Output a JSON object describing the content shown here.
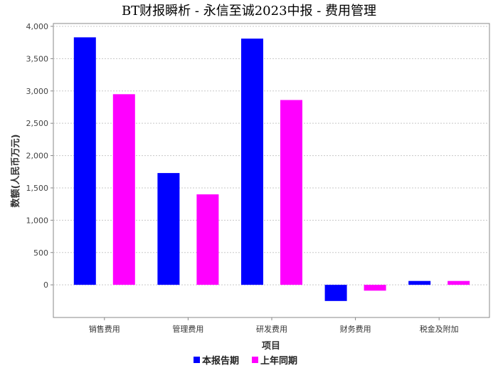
{
  "chart_data": {
    "type": "bar",
    "title": "BT财报瞬析 - 永信至诚2023中报 - 费用管理",
    "xlabel": "项目",
    "ylabel": "数额(人民币万元)",
    "categories": [
      "销售费用",
      "管理费用",
      "研发费用",
      "财务费用",
      "税金及附加"
    ],
    "series": [
      {
        "name": "本报告期",
        "color": "#0000FF",
        "values": [
          3830,
          1730,
          3810,
          -250,
          60
        ]
      },
      {
        "name": "上年同期",
        "color": "#FF00FF",
        "values": [
          2950,
          1400,
          2860,
          -90,
          60
        ]
      }
    ],
    "ylim": [
      -450,
      4000
    ],
    "yticks": [
      0,
      500,
      1000,
      1500,
      2000,
      2500,
      3000,
      3500,
      4000
    ],
    "ytick_labels": [
      "0",
      "500",
      "1,000",
      "1,500",
      "2,000",
      "2,500",
      "3,000",
      "3,500",
      "4,000"
    ],
    "grid": true,
    "legend": "bottom-center"
  }
}
